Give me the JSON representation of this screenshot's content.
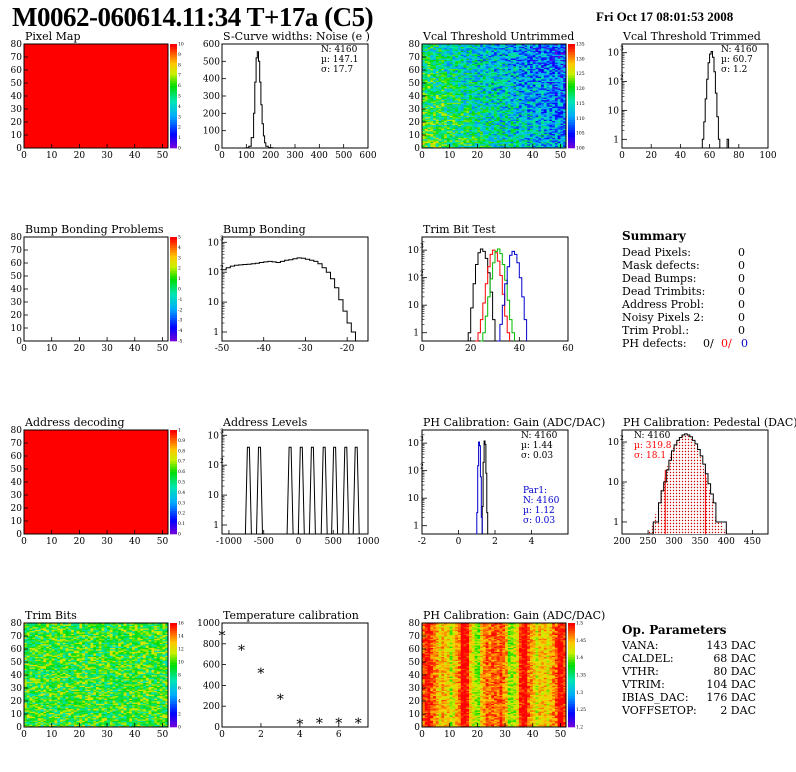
{
  "header": {
    "title": "M0062-060614.11:34 T+17a (C5)",
    "date": "Fri Oct 17 08:01:53 2008"
  },
  "colors": {
    "red": "#ff0000",
    "blue": "#0000cc",
    "green": "#00bb00",
    "black": "#000000"
  },
  "chart_data": [
    {
      "id": "pixel-map",
      "type": "heatmap",
      "title": "Pixel Map",
      "xlim": [
        0,
        52
      ],
      "ylim": [
        0,
        80
      ],
      "xticks": [
        "0",
        "10",
        "20",
        "30",
        "40",
        "50"
      ],
      "yticks": [
        "0",
        "10",
        "20",
        "30",
        "40",
        "50",
        "60",
        "70",
        "80"
      ],
      "fill": "uniform-max",
      "zlim": [
        0,
        10
      ],
      "palette": "rainbow",
      "zticks": [
        "0",
        "1",
        "2",
        "3",
        "4",
        "5",
        "6",
        "7",
        "8",
        "9",
        "10"
      ]
    },
    {
      "id": "scurve-noise",
      "type": "line",
      "title": "S-Curve widths: Noise (e )",
      "xlim": [
        0,
        600
      ],
      "ylim": [
        0,
        600
      ],
      "xticks": [
        "0",
        "100",
        "200",
        "300",
        "400",
        "500",
        "600"
      ],
      "yticks": [
        "0",
        "100",
        "200",
        "300",
        "400",
        "500",
        "600"
      ],
      "stats": [
        "N: 4160",
        "µ: 147.1",
        "σ: 17.7"
      ],
      "x": [
        90,
        100,
        110,
        120,
        130,
        135,
        140,
        145,
        150,
        155,
        160,
        165,
        170,
        175,
        180,
        190,
        200,
        210
      ],
      "y": [
        0,
        2,
        10,
        60,
        200,
        380,
        520,
        555,
        500,
        380,
        250,
        140,
        70,
        30,
        10,
        3,
        1,
        0
      ]
    },
    {
      "id": "vcal-untrimmed",
      "type": "heatmap",
      "title": "Vcal Threshold Untrimmed",
      "xlim": [
        0,
        52
      ],
      "ylim": [
        0,
        80
      ],
      "xticks": [
        "0",
        "10",
        "20",
        "30",
        "40",
        "50"
      ],
      "yticks": [
        "0",
        "10",
        "20",
        "30",
        "40",
        "50",
        "60",
        "70",
        "80"
      ],
      "fill": "noise-gradient",
      "zlim": [
        100,
        135
      ],
      "palette": "rainbow",
      "zticks": [
        "100",
        "105",
        "110",
        "115",
        "120",
        "125",
        "130",
        "135"
      ]
    },
    {
      "id": "vcal-trimmed",
      "type": "line",
      "title": "Vcal Threshold Trimmed",
      "xlim": [
        0,
        100
      ],
      "ylim_log": [
        0.5,
        2000
      ],
      "log": true,
      "xticks": [
        "0",
        "20",
        "40",
        "60",
        "80",
        "100"
      ],
      "yticks": [
        "1",
        "10",
        "10",
        "10"
      ],
      "ytick_exps": [
        "",
        "",
        "2",
        "3"
      ],
      "stats": [
        "N: 4160",
        "µ: 60.7",
        "σ: 1.2"
      ],
      "x": [
        54,
        55,
        56,
        57,
        58,
        59,
        60,
        61,
        62,
        63,
        64,
        65,
        66,
        67,
        72,
        73
      ],
      "y": [
        0,
        1,
        4,
        25,
        120,
        450,
        900,
        1100,
        700,
        220,
        40,
        6,
        1,
        0,
        1,
        0
      ]
    },
    {
      "id": "bump-problems",
      "type": "heatmap",
      "title": "Bump Bonding Problems",
      "xlim": [
        0,
        52
      ],
      "ylim": [
        0,
        80
      ],
      "xticks": [
        "0",
        "10",
        "20",
        "30",
        "40",
        "50"
      ],
      "yticks": [
        "0",
        "10",
        "20",
        "30",
        "40",
        "50",
        "60",
        "70",
        "80"
      ],
      "fill": "empty",
      "zlim": [
        -5,
        5
      ],
      "palette": "rainbow",
      "zticks": [
        "-5",
        "-4",
        "-3",
        "-2",
        "-1",
        "0",
        "1",
        "2",
        "3",
        "4",
        "5"
      ]
    },
    {
      "id": "bump-bonding",
      "type": "line",
      "title": "Bump Bonding",
      "xlim": [
        -50,
        -15
      ],
      "ylim_log": [
        0.5,
        1500
      ],
      "log": true,
      "xticks": [
        "-50",
        "-40",
        "-30",
        "-20"
      ],
      "yticks": [
        "1",
        "10",
        "10",
        "10"
      ],
      "ytick_exps": [
        "",
        "",
        "2",
        "3"
      ],
      "x": [
        -50,
        -49,
        -48,
        -47,
        -46,
        -45,
        -44,
        -43,
        -42,
        -41,
        -40,
        -39,
        -38,
        -37,
        -36,
        -35,
        -34,
        -33,
        -32,
        -31,
        -30,
        -29,
        -28,
        -27,
        -26,
        -25,
        -24,
        -23,
        -22,
        -21,
        -20,
        -19,
        -18
      ],
      "y": [
        120,
        140,
        160,
        170,
        175,
        180,
        185,
        190,
        200,
        210,
        220,
        230,
        220,
        210,
        230,
        250,
        260,
        280,
        300,
        290,
        270,
        250,
        230,
        190,
        140,
        100,
        60,
        30,
        12,
        5,
        2,
        1,
        0
      ]
    },
    {
      "id": "trim-bit-test",
      "type": "line",
      "title": "Trim Bit Test",
      "xlim": [
        0,
        60
      ],
      "ylim_log": [
        0.5,
        3000
      ],
      "log": true,
      "xticks": [
        "0",
        "20",
        "40",
        "60"
      ],
      "yticks": [
        "1",
        "10",
        "10",
        "10"
      ],
      "ytick_exps": [
        "",
        "",
        "2",
        "3"
      ],
      "series": [
        {
          "color": "black",
          "x": [
            18,
            19,
            20,
            21,
            22,
            23,
            24,
            25,
            26,
            27,
            28,
            29,
            30
          ],
          "y": [
            0,
            1,
            8,
            60,
            300,
            800,
            1100,
            900,
            500,
            150,
            30,
            3,
            0
          ]
        },
        {
          "color": "red",
          "x": [
            22,
            23,
            24,
            25,
            26,
            27,
            28,
            29,
            30,
            31,
            32,
            33,
            34,
            35,
            36
          ],
          "y": [
            0,
            1,
            3,
            12,
            60,
            250,
            700,
            1000,
            800,
            400,
            120,
            25,
            4,
            1,
            0
          ]
        },
        {
          "color": "green",
          "x": [
            24,
            25,
            26,
            27,
            28,
            29,
            30,
            31,
            32,
            33,
            34,
            35,
            36,
            37,
            38
          ],
          "y": [
            0,
            1,
            4,
            20,
            90,
            350,
            900,
            1100,
            750,
            300,
            80,
            15,
            3,
            1,
            0
          ]
        },
        {
          "color": "blue",
          "x": [
            31,
            32,
            33,
            34,
            35,
            36,
            37,
            38,
            39,
            40,
            41,
            42,
            43
          ],
          "y": [
            0,
            2,
            10,
            60,
            250,
            650,
            900,
            700,
            350,
            100,
            20,
            3,
            0
          ]
        }
      ]
    },
    {
      "id": "address-decoding",
      "type": "heatmap",
      "title": "Address decoding",
      "xlim": [
        0,
        52
      ],
      "ylim": [
        0,
        80
      ],
      "xticks": [
        "0",
        "10",
        "20",
        "30",
        "40",
        "50"
      ],
      "yticks": [
        "0",
        "10",
        "20",
        "30",
        "40",
        "50",
        "60",
        "70",
        "80"
      ],
      "fill": "uniform-max",
      "zlim": [
        0,
        1
      ],
      "palette": "rainbow",
      "zticks": [
        "0",
        "0.1",
        "0.2",
        "0.3",
        "0.4",
        "0.5",
        "0.6",
        "0.7",
        "0.8",
        "0.9",
        "1"
      ]
    },
    {
      "id": "address-levels",
      "type": "line",
      "title": "Address Levels",
      "xlim": [
        -1100,
        1000
      ],
      "ylim_log": [
        0.5,
        1500
      ],
      "log": true,
      "xticks": [
        "-1000",
        "-500",
        "0",
        "500",
        "1000"
      ],
      "yticks": [
        "1",
        "10",
        "10",
        "10"
      ],
      "ytick_exps": [
        "",
        "",
        "2",
        "3"
      ],
      "peaks": [
        -720,
        -560,
        -120,
        40,
        200,
        370,
        520,
        680,
        830
      ],
      "peak_height": 400
    },
    {
      "id": "ph-gain",
      "type": "line",
      "title": "PH Calibration: Gain (ADC/DAC)",
      "xlim": [
        -2,
        6
      ],
      "ylim_log": [
        0.5,
        3000
      ],
      "log": true,
      "xticks": [
        "-2",
        "0",
        "2",
        "4"
      ],
      "yticks": [
        "1",
        "10",
        "10",
        "10"
      ],
      "ytick_exps": [
        "",
        "",
        "2",
        "3"
      ],
      "stats": [
        "N: 4160",
        "µ: 1.44",
        "σ: 0.03"
      ],
      "stats2": [
        "Par1:",
        "N: 4160",
        "µ: 1.12",
        "σ: 0.03"
      ],
      "series": [
        {
          "color": "black",
          "x": [
            1.25,
            1.3,
            1.35,
            1.4,
            1.45,
            1.5,
            1.55,
            1.6
          ],
          "y": [
            0,
            5,
            200,
            1200,
            900,
            80,
            3,
            0
          ]
        },
        {
          "color": "blue",
          "x": [
            0.95,
            1.0,
            1.05,
            1.1,
            1.15,
            1.2,
            1.25,
            1.3
          ],
          "y": [
            0,
            3,
            150,
            1100,
            800,
            60,
            2,
            0
          ]
        }
      ]
    },
    {
      "id": "ph-pedestal",
      "type": "line",
      "title": "PH Calibration: Pedestal (DAC)",
      "xlim": [
        200,
        480
      ],
      "ylim_log": [
        0.5,
        200
      ],
      "log": true,
      "xticks": [
        "200",
        "250",
        "300",
        "350",
        "400",
        "450"
      ],
      "yticks": [
        "1",
        "10",
        "10"
      ],
      "ytick_exps": [
        "",
        "",
        "2"
      ],
      "stats": [
        "N: 4160",
        "µ: 319.8",
        "σ: 18.1"
      ],
      "fit_range": [
        283,
        360
      ],
      "x": [
        250,
        260,
        270,
        275,
        280,
        285,
        290,
        295,
        300,
        305,
        310,
        315,
        320,
        325,
        330,
        335,
        340,
        345,
        350,
        355,
        360,
        365,
        370,
        375,
        380,
        390,
        400
      ],
      "y": [
        0,
        1,
        3,
        6,
        10,
        20,
        35,
        60,
        85,
        110,
        130,
        150,
        160,
        150,
        135,
        110,
        90,
        65,
        45,
        28,
        16,
        9,
        5,
        3,
        1,
        1,
        0
      ]
    },
    {
      "id": "trim-bits",
      "type": "heatmap",
      "title": "Trim Bits",
      "xlim": [
        0,
        52
      ],
      "ylim": [
        0,
        80
      ],
      "xticks": [
        "0",
        "10",
        "20",
        "30",
        "40",
        "50"
      ],
      "yticks": [
        "0",
        "10",
        "20",
        "30",
        "40",
        "50",
        "60",
        "70",
        "80"
      ],
      "fill": "trim-noise",
      "zlim": [
        0,
        16
      ],
      "palette": "rainbow",
      "zticks": [
        "0",
        "2",
        "4",
        "6",
        "8",
        "10",
        "12",
        "14",
        "16"
      ]
    },
    {
      "id": "temperature-calibration",
      "type": "scatter",
      "title": "Temperature calibration",
      "xlim": [
        0,
        7.5
      ],
      "ylim": [
        0,
        1000
      ],
      "xticks": [
        "0",
        "2",
        "4",
        "6"
      ],
      "yticks": [
        "0",
        "200",
        "400",
        "600",
        "800",
        "1000"
      ],
      "x": [
        0,
        1,
        2,
        3,
        4,
        5,
        6,
        7
      ],
      "y": [
        880,
        740,
        520,
        270,
        30,
        40,
        40,
        40
      ]
    },
    {
      "id": "ph-gain-map",
      "type": "heatmap",
      "title": "PH Calibration: Gain (ADC/DAC)",
      "xlim": [
        0,
        52
      ],
      "ylim": [
        0,
        80
      ],
      "xticks": [
        "0",
        "10",
        "20",
        "30",
        "40",
        "50"
      ],
      "yticks": [
        "0",
        "10",
        "20",
        "30",
        "40",
        "50",
        "60",
        "70",
        "80"
      ],
      "fill": "gain-stripes",
      "zlim": [
        1.2,
        1.5
      ],
      "palette": "rainbow",
      "zticks": [
        "1.2",
        "1.25",
        "1.3",
        "1.35",
        "1.4",
        "1.45",
        "1.5"
      ]
    }
  ],
  "summary": {
    "title": "Summary",
    "rows": [
      {
        "label": "Dead Pixels:",
        "value": "0"
      },
      {
        "label": "Mask defects:",
        "value": "0"
      },
      {
        "label": "Dead Bumps:",
        "value": "0"
      },
      {
        "label": "Dead Trimbits:",
        "value": "0"
      },
      {
        "label": "Address Probl:",
        "value": "0"
      },
      {
        "label": "Noisy Pixels 2:",
        "value": "0"
      },
      {
        "label": "Trim Probl.:",
        "value": "0"
      }
    ],
    "ph_label": "PH defects:",
    "ph_values": [
      "0/",
      "0/",
      "0"
    ]
  },
  "op_params": {
    "title": "Op. Parameters",
    "rows": [
      {
        "label": "VANA:",
        "value": "143 DAC"
      },
      {
        "label": "CALDEL:",
        "value": "68 DAC"
      },
      {
        "label": "VTHR:",
        "value": "80 DAC"
      },
      {
        "label": "VTRIM:",
        "value": "104 DAC"
      },
      {
        "label": "IBIAS_DAC:",
        "value": "176 DAC"
      },
      {
        "label": "VOFFSETOP:",
        "value": "2 DAC"
      }
    ]
  }
}
